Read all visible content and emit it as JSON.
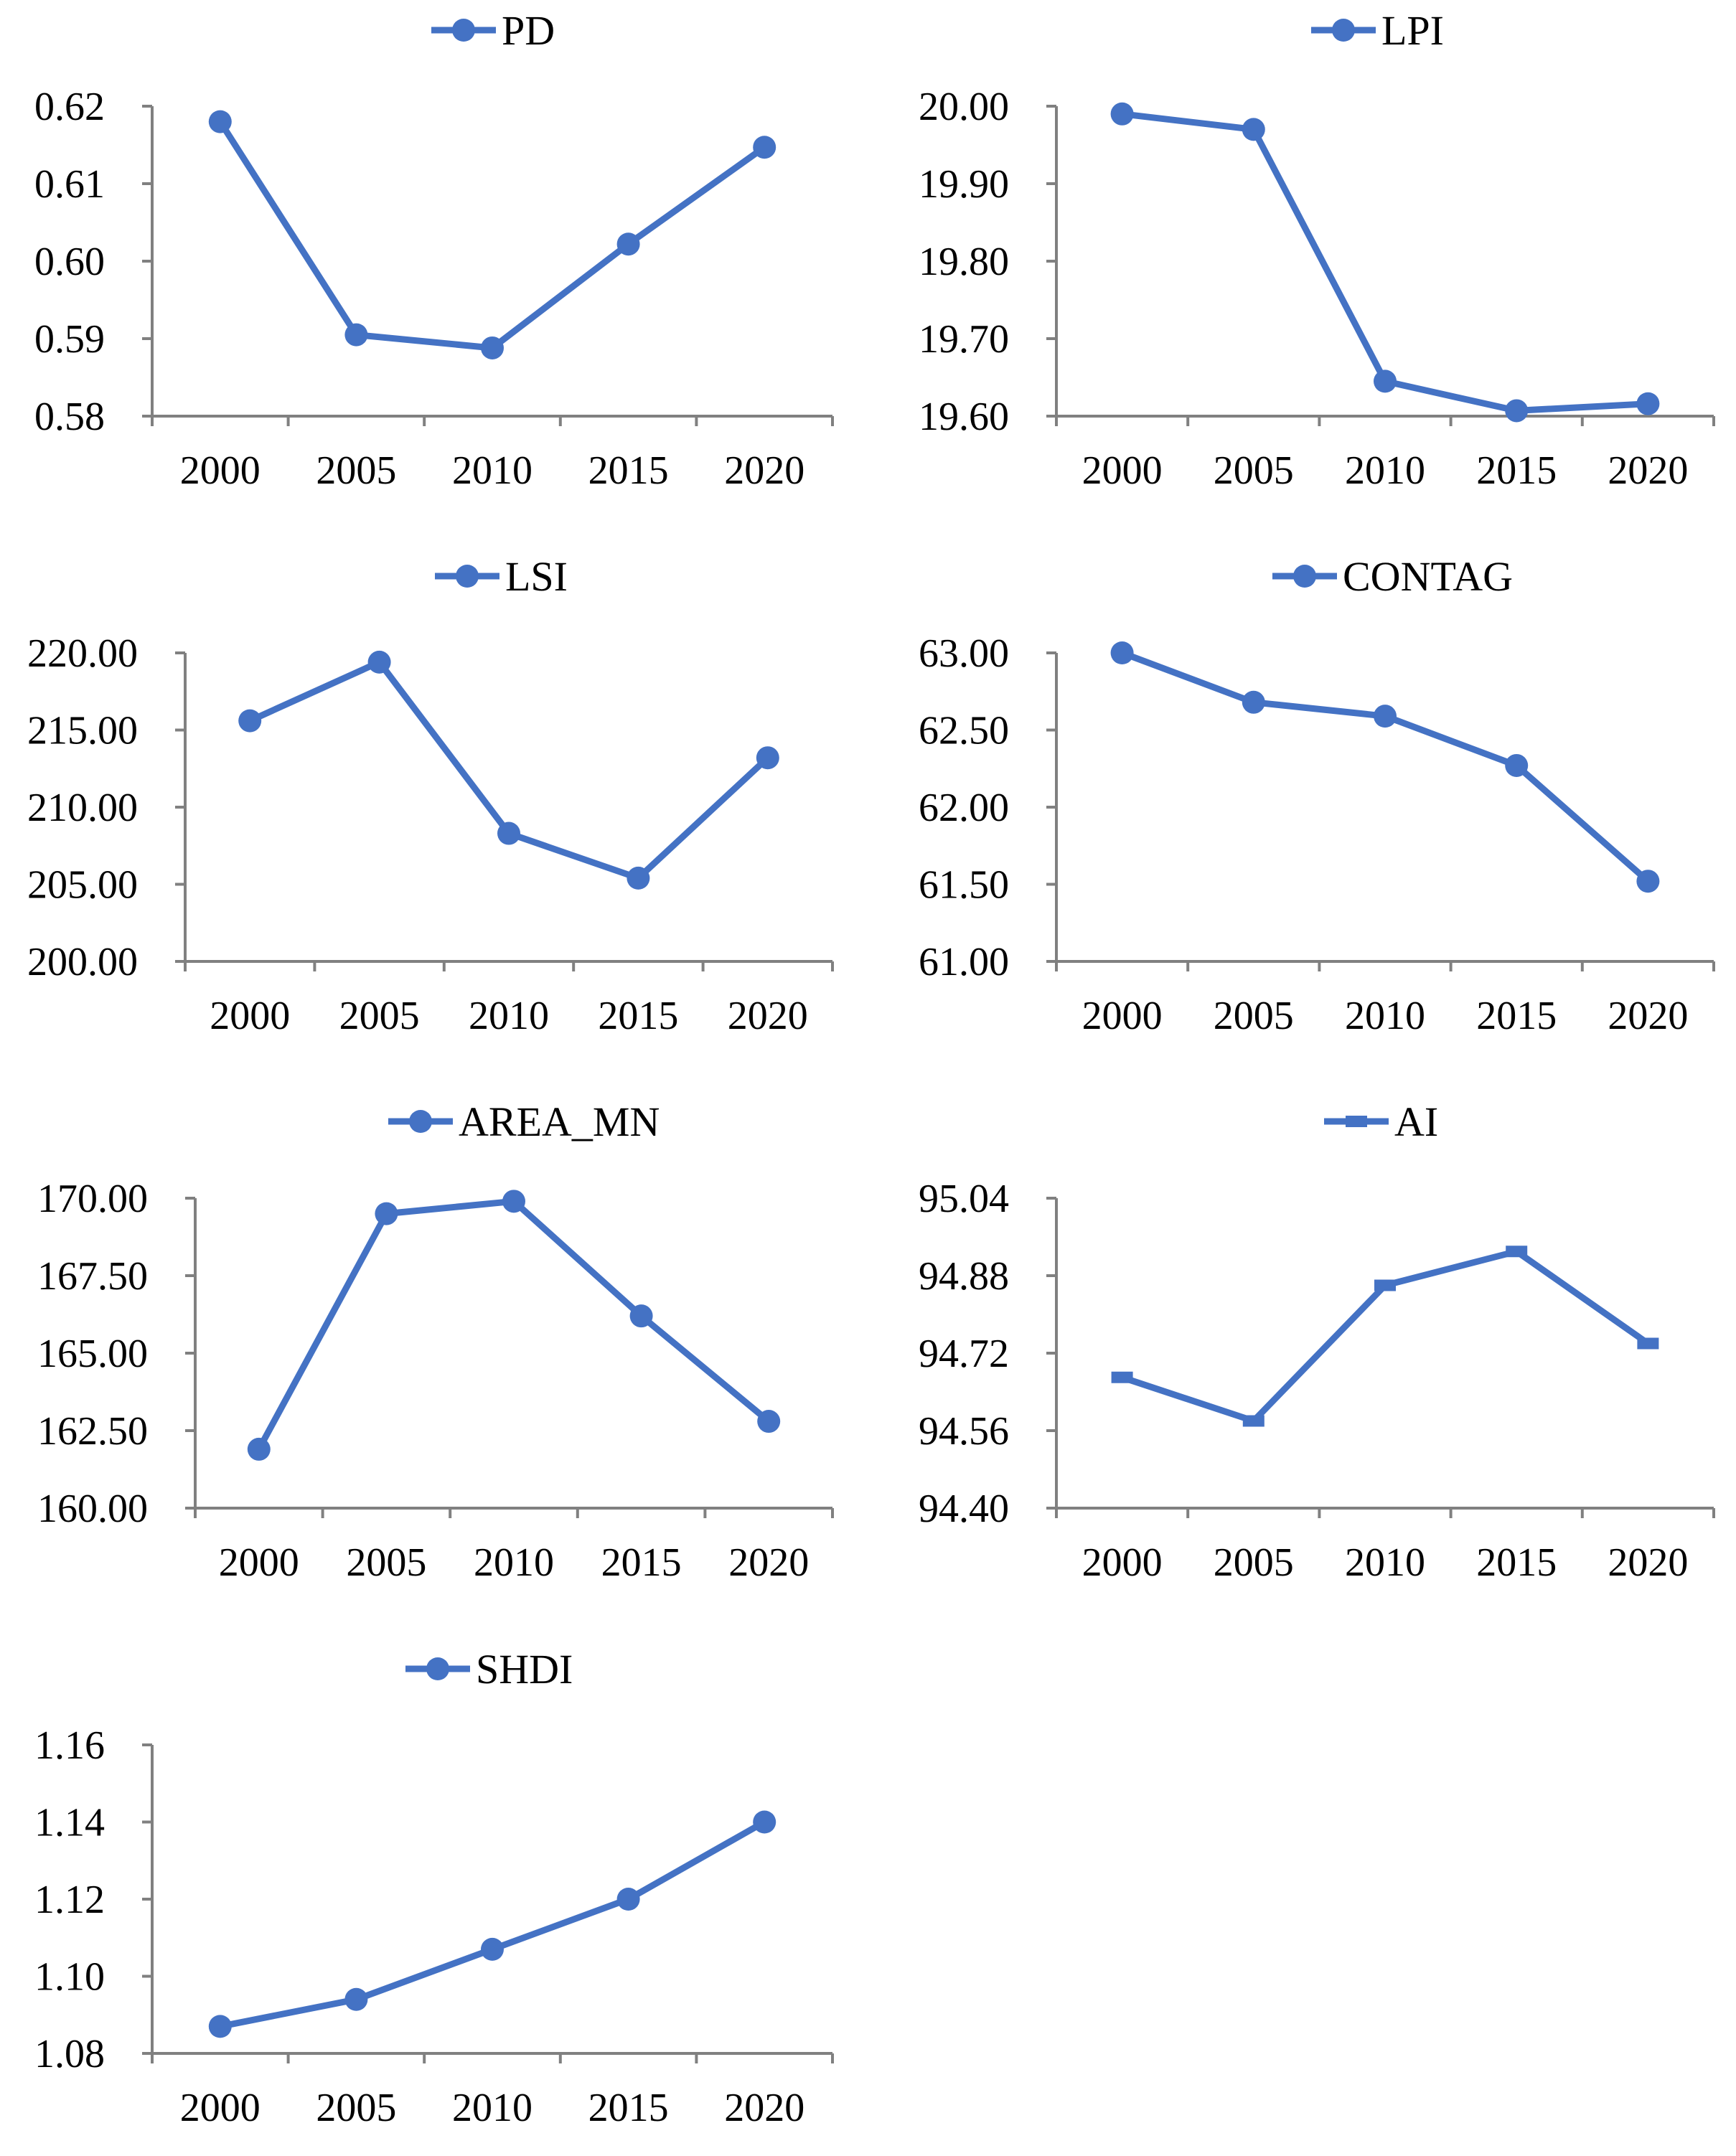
{
  "colors": {
    "series": "#4472C4",
    "axis": "#808080",
    "text": "#000000"
  },
  "chart_data": [
    {
      "type": "line",
      "legend": "PD",
      "marker": "circle",
      "categories": [
        "2000",
        "2005",
        "2010",
        "2015",
        "2020"
      ],
      "values": [
        0.618,
        0.5905,
        0.5888,
        0.6022,
        0.6147
      ],
      "yticks": [
        "0.58",
        "0.59",
        "0.60",
        "0.61",
        "0.62"
      ],
      "ylim": [
        0.58,
        0.62
      ]
    },
    {
      "type": "line",
      "legend": "LPI",
      "marker": "circle",
      "categories": [
        "2000",
        "2005",
        "2010",
        "2015",
        "2020"
      ],
      "values": [
        19.99,
        19.97,
        19.645,
        19.607,
        19.616
      ],
      "yticks": [
        "19.60",
        "19.70",
        "19.80",
        "19.90",
        "20.00"
      ],
      "ylim": [
        19.6,
        20.0
      ]
    },
    {
      "type": "line",
      "legend": "LSI",
      "marker": "circle",
      "categories": [
        "2000",
        "2005",
        "2010",
        "2015",
        "2020"
      ],
      "values": [
        215.6,
        219.4,
        208.3,
        205.4,
        213.2
      ],
      "yticks": [
        "200.00",
        "205.00",
        "210.00",
        "215.00",
        "220.00"
      ],
      "ylim": [
        200,
        220
      ]
    },
    {
      "type": "line",
      "legend": "CONTAG",
      "marker": "circle",
      "categories": [
        "2000",
        "2005",
        "2010",
        "2015",
        "2020"
      ],
      "values": [
        63.0,
        62.68,
        62.59,
        62.27,
        61.52
      ],
      "yticks": [
        "61.00",
        "61.50",
        "62.00",
        "62.50",
        "63.00"
      ],
      "ylim": [
        61,
        63
      ]
    },
    {
      "type": "line",
      "legend": "AREA_MN",
      "marker": "circle",
      "categories": [
        "2000",
        "2005",
        "2010",
        "2015",
        "2020"
      ],
      "values": [
        161.9,
        169.5,
        169.9,
        166.2,
        162.8
      ],
      "yticks": [
        "160.00",
        "162.50",
        "165.00",
        "167.50",
        "170.00"
      ],
      "ylim": [
        160,
        170
      ]
    },
    {
      "type": "line",
      "legend": "AI",
      "marker": "dash",
      "categories": [
        "2000",
        "2005",
        "2010",
        "2015",
        "2020"
      ],
      "values": [
        94.67,
        94.58,
        94.86,
        94.93,
        94.74
      ],
      "yticks": [
        "94.40",
        "94.56",
        "94.72",
        "94.88",
        "95.04"
      ],
      "ylim": [
        94.4,
        95.04
      ]
    },
    {
      "type": "line",
      "legend": "SHDI",
      "marker": "circle",
      "categories": [
        "2000",
        "2005",
        "2010",
        "2015",
        "2020"
      ],
      "values": [
        1.087,
        1.094,
        1.107,
        1.12,
        1.14
      ],
      "yticks": [
        "1.08",
        "1.10",
        "1.12",
        "1.14",
        "1.16"
      ],
      "ylim": [
        1.08,
        1.16
      ]
    }
  ]
}
